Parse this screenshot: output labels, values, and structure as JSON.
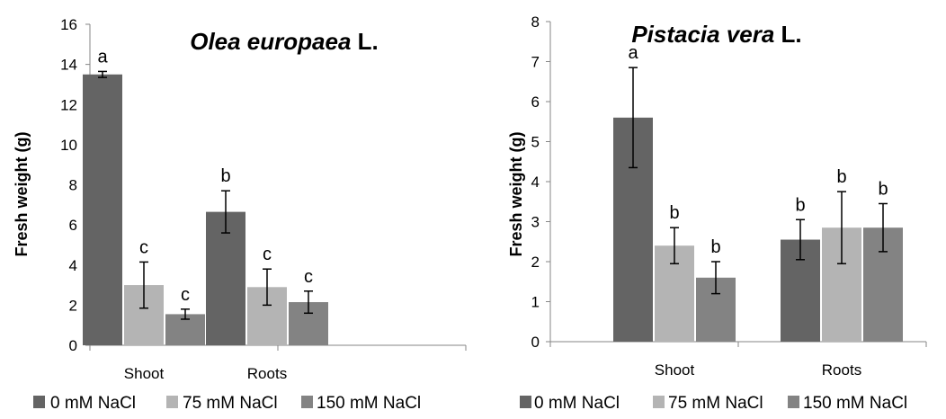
{
  "chart_data": [
    {
      "type": "bar",
      "title_italic": "Olea europaea",
      "title_suffix": " L.",
      "ylabel": "Fresh weight (g)",
      "xlabel": "",
      "ylim": [
        0,
        16
      ],
      "yticks": [
        "0",
        "2",
        "4",
        "6",
        "8",
        "10",
        "12",
        "14",
        "16"
      ],
      "categories": [
        "Shoot",
        "Roots"
      ],
      "series": [
        {
          "name": "0 mM NaCl",
          "color": "#646464",
          "values": [
            13.5,
            6.65
          ],
          "errors": [
            0.15,
            1.05
          ],
          "letters": [
            "a",
            "b"
          ]
        },
        {
          "name": "75 mM NaCl",
          "color": "#b4b4b4",
          "values": [
            3.0,
            2.9
          ],
          "errors": [
            1.15,
            0.9
          ],
          "letters": [
            "c",
            "c"
          ]
        },
        {
          "name": "150 mM NaCl",
          "color": "#838383",
          "values": [
            1.55,
            2.15
          ],
          "errors": [
            0.25,
            0.55
          ],
          "letters": [
            "c",
            "c"
          ]
        }
      ],
      "grid": false,
      "legend_position": "bottom"
    },
    {
      "type": "bar",
      "title_italic": "Pistacia vera",
      "title_suffix": " L.",
      "ylabel": "Fresh weight (g)",
      "xlabel": "",
      "ylim": [
        0,
        8
      ],
      "yticks": [
        "0",
        "1",
        "2",
        "3",
        "4",
        "5",
        "6",
        "7",
        "8"
      ],
      "categories": [
        "Shoot",
        "Roots"
      ],
      "series": [
        {
          "name": "0 mM NaCl",
          "color": "#646464",
          "values": [
            5.6,
            2.55
          ],
          "errors": [
            1.25,
            0.5
          ],
          "letters": [
            "a",
            "b"
          ]
        },
        {
          "name": "75 mM NaCl",
          "color": "#b4b4b4",
          "values": [
            2.4,
            2.85
          ],
          "errors": [
            0.45,
            0.9
          ],
          "letters": [
            "b",
            "b"
          ]
        },
        {
          "name": "150 mM NaCl",
          "color": "#838383",
          "values": [
            1.6,
            2.85
          ],
          "errors": [
            0.4,
            0.6
          ],
          "letters": [
            "b",
            "b"
          ]
        }
      ],
      "grid": false,
      "legend_position": "bottom"
    }
  ]
}
